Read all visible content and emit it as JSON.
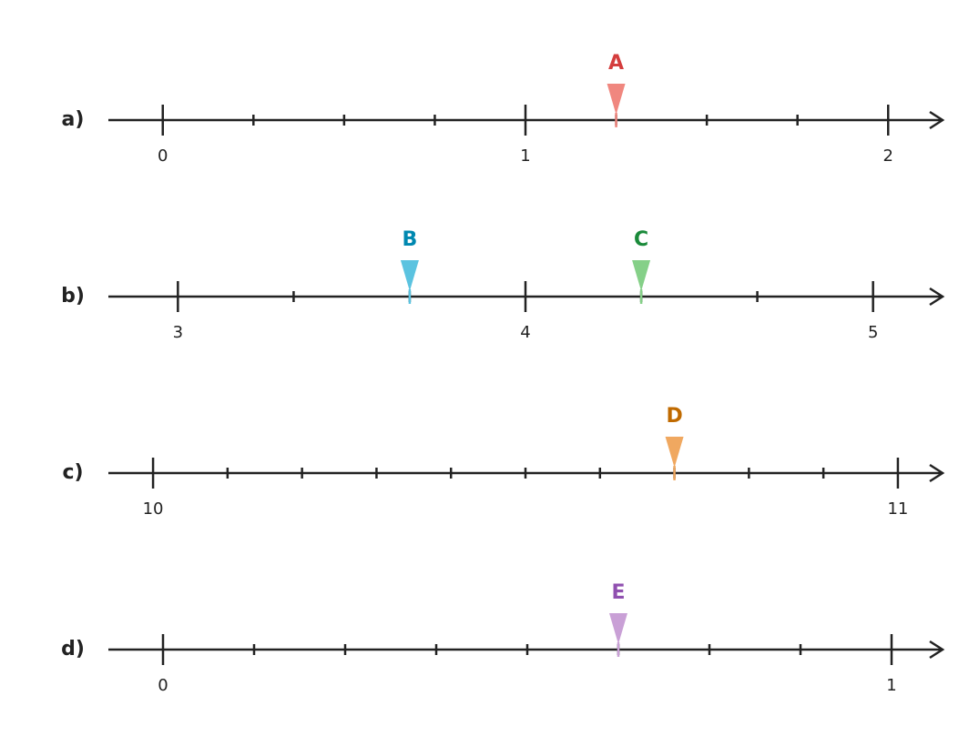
{
  "lines": [
    {
      "label": "a)",
      "xlim": [
        -0.15,
        2.15
      ],
      "ticks": [
        0,
        1,
        2
      ],
      "minor_ticks": [
        0.25,
        0.5,
        0.75,
        1.25,
        1.5,
        1.75
      ],
      "markers": [
        {
          "label": "A",
          "value": 1.25,
          "color": "#d43d3d",
          "fill": "#f0877f"
        }
      ]
    },
    {
      "label": "b)",
      "xlim": [
        2.8,
        5.2
      ],
      "ticks": [
        3,
        4,
        5
      ],
      "minor_ticks": [
        3.333,
        3.667,
        4.333,
        4.667
      ],
      "markers": [
        {
          "label": "B",
          "value": 3.667,
          "color": "#0088b0",
          "fill": "#5bc3e0"
        },
        {
          "label": "C",
          "value": 4.333,
          "color": "#1a8a3a",
          "fill": "#85d088"
        }
      ]
    },
    {
      "label": "c)",
      "xlim": [
        9.94,
        11.06
      ],
      "ticks": [
        10,
        11
      ],
      "minor_ticks": [
        10.1,
        10.2,
        10.3,
        10.4,
        10.5,
        10.6,
        10.7,
        10.8,
        10.9
      ],
      "markers": [
        {
          "label": "D",
          "value": 10.7,
          "color": "#c06a00",
          "fill": "#f0a860"
        }
      ]
    },
    {
      "label": "d)",
      "xlim": [
        -0.075,
        1.07
      ],
      "ticks": [
        0,
        1
      ],
      "minor_ticks": [
        0.125,
        0.25,
        0.375,
        0.5,
        0.625,
        0.75,
        0.875
      ],
      "markers": [
        {
          "label": "E",
          "value": 0.625,
          "color": "#9050b0",
          "fill": "#c9a0d6"
        }
      ]
    }
  ]
}
